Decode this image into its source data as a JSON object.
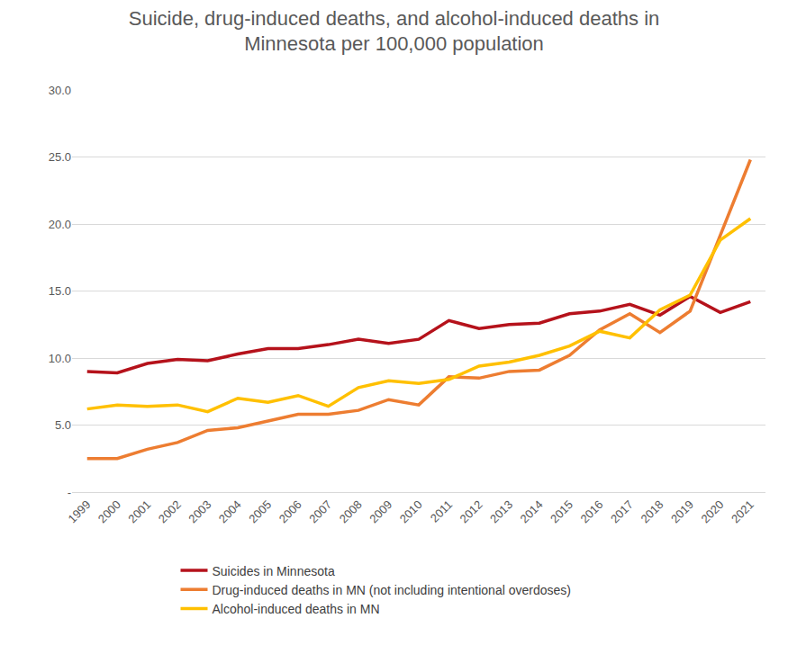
{
  "chart_data": {
    "type": "line",
    "title": [
      "Suicide, drug-induced deaths, and alcohol-induced deaths in",
      "Minnesota per 100,000 population"
    ],
    "categories": [
      "1999",
      "2000",
      "2001",
      "2002",
      "2003",
      "2004",
      "2005",
      "2006",
      "2007",
      "2008",
      "2009",
      "2010",
      "2011",
      "2012",
      "2013",
      "2014",
      "2015",
      "2016",
      "2017",
      "2018",
      "2019",
      "2020",
      "2021"
    ],
    "series": [
      {
        "name": "Suicides in Minnesota",
        "color": "#b5121b",
        "values": [
          9.0,
          8.9,
          9.6,
          9.9,
          9.8,
          10.3,
          10.7,
          10.7,
          11.0,
          11.4,
          11.1,
          11.4,
          12.8,
          12.2,
          12.5,
          12.6,
          13.3,
          13.5,
          14.0,
          13.2,
          14.6,
          13.4,
          14.2
        ]
      },
      {
        "name": "Drug-induced deaths in MN (not including intentional overdoses)",
        "color": "#ed7d31",
        "values": [
          2.5,
          2.5,
          3.2,
          3.7,
          4.6,
          4.8,
          5.3,
          5.8,
          5.8,
          6.1,
          6.9,
          6.5,
          8.6,
          8.5,
          9.0,
          9.1,
          10.2,
          12.1,
          13.3,
          11.9,
          13.5,
          19.2,
          24.8
        ]
      },
      {
        "name": "Alcohol-induced deaths in MN",
        "color": "#ffc000",
        "values": [
          6.2,
          6.5,
          6.4,
          6.5,
          6.0,
          7.0,
          6.7,
          7.2,
          6.4,
          7.8,
          8.3,
          8.1,
          8.4,
          9.4,
          9.7,
          10.2,
          10.9,
          12.0,
          11.5,
          13.6,
          14.7,
          18.8,
          20.4
        ]
      }
    ],
    "ylim": [
      0,
      30
    ],
    "yticks": [
      {
        "value": 0,
        "label": "-"
      },
      {
        "value": 5,
        "label": "5.0"
      },
      {
        "value": 10,
        "label": "10.0"
      },
      {
        "value": 15,
        "label": "15.0"
      },
      {
        "value": 20,
        "label": "20.0"
      },
      {
        "value": 25,
        "label": "25.0"
      },
      {
        "value": 30,
        "label": "30.0"
      }
    ],
    "grid": true,
    "legend": "bottom"
  }
}
